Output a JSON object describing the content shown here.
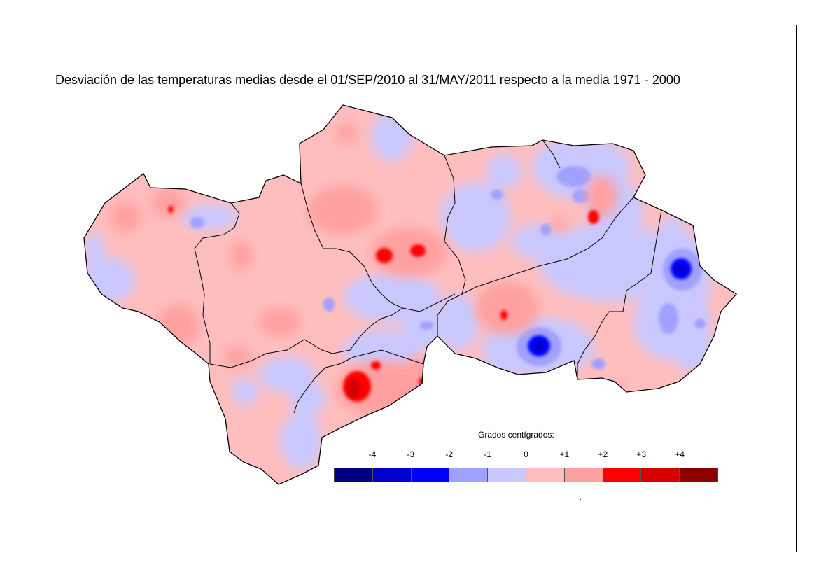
{
  "title": "Desviación de las temperaturas medias desde el 01/SEP/2010 al 31/MAY/2011 respecto a la media 1971 - 2000",
  "legend": {
    "title": "Grados centígrados:",
    "ticks": [
      "-4",
      "-3",
      "-2",
      "-1",
      "0",
      "+1",
      "+2",
      "+3",
      "+4"
    ],
    "colors": [
      "#000080",
      "#0000cc",
      "#0000ff",
      "#a0a0ff",
      "#c8c8ff",
      "#ffbebe",
      "#ffa0a0",
      "#ff0000",
      "#d70000",
      "#8c0000"
    ]
  },
  "footnote": "."
}
